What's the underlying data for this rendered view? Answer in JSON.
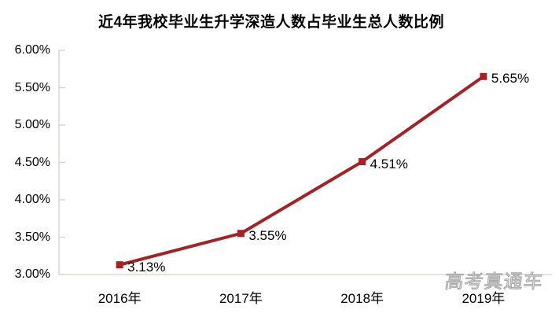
{
  "title": "近4年我校毕业生升学深造人数占毕业生总人数比例",
  "watermark": "高考真通车",
  "chart_data": {
    "type": "line",
    "title": "近4年我校毕业生升学深造人数占毕业生总人数比例",
    "categories": [
      "2016年",
      "2017年",
      "2018年",
      "2019年"
    ],
    "values": [
      3.13,
      3.55,
      4.51,
      5.65
    ],
    "data_labels": [
      "3.13%",
      "3.55%",
      "4.51%",
      "5.65%"
    ],
    "xlabel": "",
    "ylabel": "",
    "ylim": [
      3.0,
      6.0
    ],
    "y_tick_step": 0.5,
    "y_tick_labels": [
      "3.00%",
      "3.50%",
      "4.00%",
      "4.50%",
      "5.00%",
      "5.50%",
      "6.00%"
    ],
    "grid": false,
    "legend": "none",
    "marker": "square",
    "line_color": "#A42125",
    "axis_color": "#D6D2CC",
    "text_color": "#000000"
  }
}
